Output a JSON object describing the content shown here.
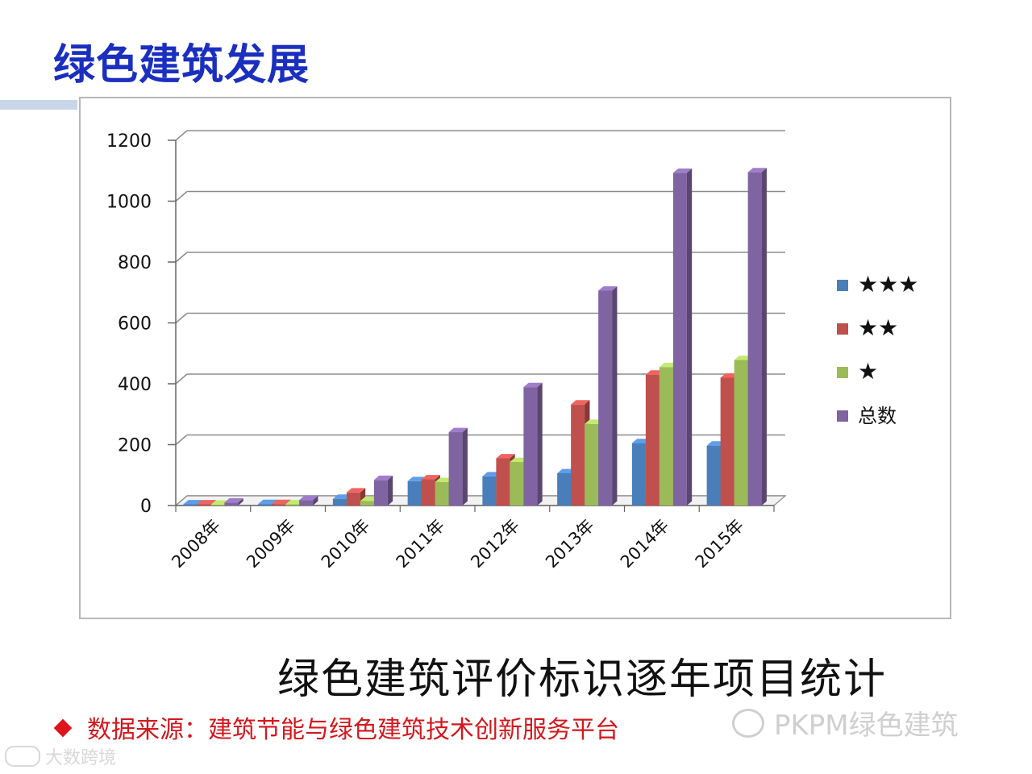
{
  "slide": {
    "title": "绿色建筑发展",
    "caption": "绿色建筑评价标识逐年项目统计",
    "source": "数据来源：建筑节能与绿色建筑技术创新服务平台",
    "watermark_right": "PKPM绿色建筑",
    "watermark_left": "大数跨境"
  },
  "colors": {
    "title": "#1b2fbf",
    "source": "#d3171d",
    "series": [
      "#4a7ebb",
      "#c0504d",
      "#9bbb59",
      "#8064a2"
    ]
  },
  "chart_data": {
    "type": "bar",
    "style": "3d-clustered-column",
    "categories": [
      "2008年",
      "2009年",
      "2010年",
      "2011年",
      "2012年",
      "2013年",
      "2014年",
      "2015年"
    ],
    "series": [
      {
        "name": "★★★",
        "values": [
          4,
          5,
          22,
          80,
          96,
          106,
          205,
          197
        ]
      },
      {
        "name": "★★",
        "values": [
          4,
          5,
          43,
          86,
          155,
          332,
          430,
          420
        ]
      },
      {
        "name": "★",
        "values": [
          3,
          4,
          15,
          77,
          143,
          268,
          455,
          478
        ]
      },
      {
        "name": "总数",
        "values": [
          10,
          18,
          84,
          241,
          389,
          706,
          1093,
          1095
        ]
      }
    ],
    "yticks": [
      "0",
      "200",
      "400",
      "600",
      "800",
      "1000",
      "1200"
    ],
    "ylim": [
      0,
      1200
    ],
    "grid": true,
    "legend": "right"
  }
}
